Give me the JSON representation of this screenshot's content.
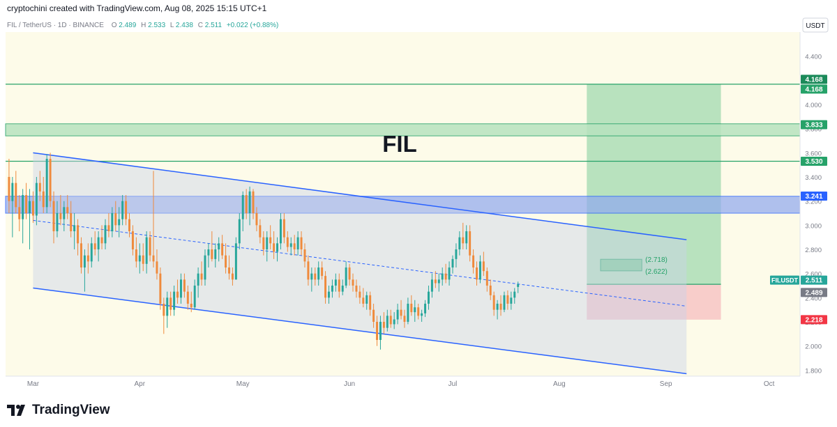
{
  "header": {
    "credit": "cryptochini created with TradingView.com, Aug 08, 2025 15:15 UTC+1"
  },
  "footer": {
    "brand": "TradingView"
  },
  "colors": {
    "background": "#fdfbe9",
    "up": "#26a69a",
    "down": "#ef8a3c",
    "channel": "#2962ff",
    "resistance": "#26a269",
    "zone_blue": "#8fa8f0",
    "target_zone": "#a6dcb3",
    "stop_zone": "#f7c4c4"
  },
  "chart_data": {
    "type": "candlestick",
    "symbol_line": {
      "symbol": "FIL / TetherUS · 1D · BINANCE",
      "o_label": "O",
      "o": "2.489",
      "h_label": "H",
      "h": "2.533",
      "l_label": "L",
      "l": "2.438",
      "c_label": "C",
      "c": "2.511",
      "change": "+0.022 (+0.88%)"
    },
    "title": "FIL",
    "currency": "USDT",
    "y_ticks": [
      "4.400",
      "4.200",
      "4.000",
      "3.800",
      "3.600",
      "3.400",
      "3.200",
      "3.000",
      "2.800",
      "2.600",
      "2.400",
      "2.200",
      "2.000",
      "1.800"
    ],
    "y_range": [
      1.75,
      4.6
    ],
    "x_labels": [
      {
        "label": "Mar",
        "day": 0
      },
      {
        "label": "Apr",
        "day": 31
      },
      {
        "label": "May",
        "day": 61
      },
      {
        "label": "Jun",
        "day": 92
      },
      {
        "label": "Jul",
        "day": 122
      },
      {
        "label": "Aug",
        "day": 153
      },
      {
        "label": "Sep",
        "day": 184
      },
      {
        "label": "Oct",
        "day": 214
      }
    ],
    "x_range": [
      -8,
      223
    ],
    "candles": [
      {
        "o": 3.4,
        "h": 3.55,
        "l": 3.1,
        "c": 3.2
      },
      {
        "o": 3.2,
        "h": 3.4,
        "l": 2.9,
        "c": 3.35
      },
      {
        "o": 3.35,
        "h": 3.45,
        "l": 3.1,
        "c": 3.15
      },
      {
        "o": 3.15,
        "h": 3.25,
        "l": 2.95,
        "c": 3.05
      },
      {
        "o": 3.05,
        "h": 3.3,
        "l": 2.85,
        "c": 3.25
      },
      {
        "o": 3.25,
        "h": 3.35,
        "l": 3.05,
        "c": 3.1
      },
      {
        "o": 3.1,
        "h": 3.3,
        "l": 2.8,
        "c": 3.2
      },
      {
        "o": 3.2,
        "h": 3.28,
        "l": 3.02,
        "c": 3.08
      },
      {
        "o": 3.08,
        "h": 3.4,
        "l": 3.0,
        "c": 3.35
      },
      {
        "o": 3.35,
        "h": 3.45,
        "l": 3.2,
        "c": 3.28
      },
      {
        "o": 3.28,
        "h": 3.4,
        "l": 3.1,
        "c": 3.15
      },
      {
        "o": 3.15,
        "h": 3.59,
        "l": 3.1,
        "c": 3.55
      },
      {
        "o": 3.55,
        "h": 3.6,
        "l": 3.15,
        "c": 3.2
      },
      {
        "o": 3.2,
        "h": 3.28,
        "l": 2.85,
        "c": 2.95
      },
      {
        "o": 2.95,
        "h": 3.2,
        "l": 2.9,
        "c": 3.1
      },
      {
        "o": 3.1,
        "h": 3.25,
        "l": 3.0,
        "c": 3.05
      },
      {
        "o": 3.05,
        "h": 3.2,
        "l": 2.95,
        "c": 3.15
      },
      {
        "o": 3.15,
        "h": 3.25,
        "l": 3.05,
        "c": 3.1
      },
      {
        "o": 3.1,
        "h": 3.2,
        "l": 2.9,
        "c": 2.95
      },
      {
        "o": 2.95,
        "h": 3.1,
        "l": 2.8,
        "c": 3.0
      },
      {
        "o": 3.0,
        "h": 3.05,
        "l": 2.75,
        "c": 2.85
      },
      {
        "o": 2.85,
        "h": 2.9,
        "l": 2.6,
        "c": 2.65
      },
      {
        "o": 2.65,
        "h": 2.8,
        "l": 2.45,
        "c": 2.75
      },
      {
        "o": 2.75,
        "h": 2.85,
        "l": 2.6,
        "c": 2.7
      },
      {
        "o": 2.7,
        "h": 2.9,
        "l": 2.65,
        "c": 2.85
      },
      {
        "o": 2.85,
        "h": 2.95,
        "l": 2.75,
        "c": 2.8
      },
      {
        "o": 2.8,
        "h": 2.95,
        "l": 2.7,
        "c": 2.9
      },
      {
        "o": 2.9,
        "h": 3.0,
        "l": 2.8,
        "c": 2.85
      },
      {
        "o": 2.85,
        "h": 3.05,
        "l": 2.8,
        "c": 3.0
      },
      {
        "o": 3.0,
        "h": 3.1,
        "l": 2.9,
        "c": 2.95
      },
      {
        "o": 2.95,
        "h": 3.15,
        "l": 2.9,
        "c": 3.1
      },
      {
        "o": 3.1,
        "h": 3.2,
        "l": 2.95,
        "c": 3.0
      },
      {
        "o": 3.0,
        "h": 3.15,
        "l": 2.9,
        "c": 3.05
      },
      {
        "o": 3.05,
        "h": 3.25,
        "l": 3.0,
        "c": 3.2
      },
      {
        "o": 3.2,
        "h": 3.25,
        "l": 3.0,
        "c": 3.05
      },
      {
        "o": 3.05,
        "h": 3.1,
        "l": 2.9,
        "c": 2.95
      },
      {
        "o": 2.95,
        "h": 3.0,
        "l": 2.75,
        "c": 2.8
      },
      {
        "o": 2.8,
        "h": 2.9,
        "l": 2.65,
        "c": 2.7
      },
      {
        "o": 2.7,
        "h": 2.85,
        "l": 2.6,
        "c": 2.75
      },
      {
        "o": 2.75,
        "h": 2.85,
        "l": 2.62,
        "c": 2.68
      },
      {
        "o": 2.68,
        "h": 2.95,
        "l": 2.6,
        "c": 2.9
      },
      {
        "o": 2.9,
        "h": 2.95,
        "l": 2.7,
        "c": 2.75
      },
      {
        "o": 2.75,
        "h": 3.45,
        "l": 2.65,
        "c": 2.7
      },
      {
        "o": 2.7,
        "h": 2.8,
        "l": 2.55,
        "c": 2.6
      },
      {
        "o": 2.6,
        "h": 2.65,
        "l": 2.3,
        "c": 2.35
      },
      {
        "o": 2.35,
        "h": 2.4,
        "l": 2.1,
        "c": 2.25
      },
      {
        "o": 2.25,
        "h": 2.45,
        "l": 2.15,
        "c": 2.4
      },
      {
        "o": 2.4,
        "h": 2.45,
        "l": 2.25,
        "c": 2.3
      },
      {
        "o": 2.3,
        "h": 2.5,
        "l": 2.25,
        "c": 2.45
      },
      {
        "o": 2.45,
        "h": 2.55,
        "l": 2.35,
        "c": 2.4
      },
      {
        "o": 2.4,
        "h": 2.6,
        "l": 2.35,
        "c": 2.55
      },
      {
        "o": 2.55,
        "h": 2.6,
        "l": 2.4,
        "c": 2.45
      },
      {
        "o": 2.45,
        "h": 2.5,
        "l": 2.3,
        "c": 2.35
      },
      {
        "o": 2.35,
        "h": 2.45,
        "l": 2.28,
        "c": 2.32
      },
      {
        "o": 2.32,
        "h": 2.55,
        "l": 2.3,
        "c": 2.5
      },
      {
        "o": 2.5,
        "h": 2.65,
        "l": 2.4,
        "c": 2.6
      },
      {
        "o": 2.6,
        "h": 2.7,
        "l": 2.5,
        "c": 2.55
      },
      {
        "o": 2.55,
        "h": 2.8,
        "l": 2.5,
        "c": 2.75
      },
      {
        "o": 2.75,
        "h": 2.85,
        "l": 2.65,
        "c": 2.8
      },
      {
        "o": 2.8,
        "h": 2.95,
        "l": 2.7,
        "c": 2.72
      },
      {
        "o": 2.72,
        "h": 2.85,
        "l": 2.65,
        "c": 2.8
      },
      {
        "o": 2.8,
        "h": 2.9,
        "l": 2.7,
        "c": 2.85
      },
      {
        "o": 2.85,
        "h": 2.92,
        "l": 2.72,
        "c": 2.75
      },
      {
        "o": 2.75,
        "h": 2.85,
        "l": 2.6,
        "c": 2.65
      },
      {
        "o": 2.65,
        "h": 2.75,
        "l": 2.55,
        "c": 2.6
      },
      {
        "o": 2.6,
        "h": 2.65,
        "l": 2.5,
        "c": 2.55
      },
      {
        "o": 2.55,
        "h": 2.9,
        "l": 2.55,
        "c": 2.85
      },
      {
        "o": 2.85,
        "h": 3.1,
        "l": 2.8,
        "c": 3.05
      },
      {
        "o": 3.05,
        "h": 3.28,
        "l": 2.95,
        "c": 3.25
      },
      {
        "o": 3.25,
        "h": 3.3,
        "l": 3.05,
        "c": 3.1
      },
      {
        "o": 3.1,
        "h": 3.32,
        "l": 3.0,
        "c": 3.28
      },
      {
        "o": 3.28,
        "h": 3.3,
        "l": 3.05,
        "c": 3.1
      },
      {
        "o": 3.1,
        "h": 3.15,
        "l": 2.95,
        "c": 3.0
      },
      {
        "o": 3.0,
        "h": 3.05,
        "l": 2.85,
        "c": 2.9
      },
      {
        "o": 2.9,
        "h": 2.95,
        "l": 2.75,
        "c": 2.8
      },
      {
        "o": 2.8,
        "h": 2.95,
        "l": 2.7,
        "c": 2.9
      },
      {
        "o": 2.9,
        "h": 3.0,
        "l": 2.8,
        "c": 2.85
      },
      {
        "o": 2.85,
        "h": 2.95,
        "l": 2.72,
        "c": 2.78
      },
      {
        "o": 2.78,
        "h": 2.9,
        "l": 2.7,
        "c": 2.85
      },
      {
        "o": 2.85,
        "h": 3.1,
        "l": 2.8,
        "c": 3.05
      },
      {
        "o": 3.05,
        "h": 3.1,
        "l": 2.85,
        "c": 2.9
      },
      {
        "o": 2.9,
        "h": 2.95,
        "l": 2.78,
        "c": 2.82
      },
      {
        "o": 2.82,
        "h": 2.9,
        "l": 2.75,
        "c": 2.85
      },
      {
        "o": 2.85,
        "h": 2.92,
        "l": 2.75,
        "c": 2.8
      },
      {
        "o": 2.8,
        "h": 2.95,
        "l": 2.75,
        "c": 2.9
      },
      {
        "o": 2.9,
        "h": 2.95,
        "l": 2.75,
        "c": 2.8
      },
      {
        "o": 2.8,
        "h": 2.85,
        "l": 2.65,
        "c": 2.7
      },
      {
        "o": 2.7,
        "h": 2.75,
        "l": 2.5,
        "c": 2.55
      },
      {
        "o": 2.55,
        "h": 2.65,
        "l": 2.45,
        "c": 2.6
      },
      {
        "o": 2.6,
        "h": 2.65,
        "l": 2.5,
        "c": 2.55
      },
      {
        "o": 2.55,
        "h": 2.7,
        "l": 2.5,
        "c": 2.65
      },
      {
        "o": 2.65,
        "h": 2.7,
        "l": 2.55,
        "c": 2.58
      },
      {
        "o": 2.58,
        "h": 2.62,
        "l": 2.35,
        "c": 2.4
      },
      {
        "o": 2.4,
        "h": 2.5,
        "l": 2.35,
        "c": 2.45
      },
      {
        "o": 2.45,
        "h": 2.55,
        "l": 2.4,
        "c": 2.5
      },
      {
        "o": 2.5,
        "h": 2.6,
        "l": 2.45,
        "c": 2.55
      },
      {
        "o": 2.55,
        "h": 2.6,
        "l": 2.4,
        "c": 2.45
      },
      {
        "o": 2.45,
        "h": 2.55,
        "l": 2.42,
        "c": 2.5
      },
      {
        "o": 2.5,
        "h": 2.7,
        "l": 2.48,
        "c": 2.65
      },
      {
        "o": 2.65,
        "h": 2.68,
        "l": 2.5,
        "c": 2.55
      },
      {
        "o": 2.55,
        "h": 2.6,
        "l": 2.45,
        "c": 2.5
      },
      {
        "o": 2.5,
        "h": 2.55,
        "l": 2.4,
        "c": 2.45
      },
      {
        "o": 2.45,
        "h": 2.5,
        "l": 2.35,
        "c": 2.4
      },
      {
        "o": 2.4,
        "h": 2.48,
        "l": 2.32,
        "c": 2.35
      },
      {
        "o": 2.35,
        "h": 2.45,
        "l": 2.3,
        "c": 2.42
      },
      {
        "o": 2.42,
        "h": 2.45,
        "l": 2.25,
        "c": 2.3
      },
      {
        "o": 2.3,
        "h": 2.35,
        "l": 2.15,
        "c": 2.2
      },
      {
        "o": 2.2,
        "h": 2.25,
        "l": 2.0,
        "c": 2.05
      },
      {
        "o": 2.05,
        "h": 2.25,
        "l": 1.97,
        "c": 2.2
      },
      {
        "o": 2.2,
        "h": 2.28,
        "l": 2.1,
        "c": 2.15
      },
      {
        "o": 2.15,
        "h": 2.3,
        "l": 2.12,
        "c": 2.25
      },
      {
        "o": 2.25,
        "h": 2.3,
        "l": 2.15,
        "c": 2.18
      },
      {
        "o": 2.18,
        "h": 2.28,
        "l": 2.14,
        "c": 2.22
      },
      {
        "o": 2.22,
        "h": 2.35,
        "l": 2.18,
        "c": 2.3
      },
      {
        "o": 2.3,
        "h": 2.38,
        "l": 2.22,
        "c": 2.25
      },
      {
        "o": 2.25,
        "h": 2.3,
        "l": 2.15,
        "c": 2.2
      },
      {
        "o": 2.2,
        "h": 2.4,
        "l": 2.18,
        "c": 2.35
      },
      {
        "o": 2.35,
        "h": 2.42,
        "l": 2.25,
        "c": 2.28
      },
      {
        "o": 2.28,
        "h": 2.38,
        "l": 2.2,
        "c": 2.32
      },
      {
        "o": 2.32,
        "h": 2.35,
        "l": 2.22,
        "c": 2.25
      },
      {
        "o": 2.25,
        "h": 2.3,
        "l": 2.2,
        "c": 2.27
      },
      {
        "o": 2.27,
        "h": 2.38,
        "l": 2.24,
        "c": 2.35
      },
      {
        "o": 2.35,
        "h": 2.5,
        "l": 2.3,
        "c": 2.45
      },
      {
        "o": 2.45,
        "h": 2.6,
        "l": 2.4,
        "c": 2.55
      },
      {
        "o": 2.55,
        "h": 2.62,
        "l": 2.48,
        "c": 2.52
      },
      {
        "o": 2.52,
        "h": 2.6,
        "l": 2.45,
        "c": 2.55
      },
      {
        "o": 2.55,
        "h": 2.65,
        "l": 2.5,
        "c": 2.6
      },
      {
        "o": 2.6,
        "h": 2.68,
        "l": 2.52,
        "c": 2.55
      },
      {
        "o": 2.55,
        "h": 2.7,
        "l": 2.5,
        "c": 2.65
      },
      {
        "o": 2.65,
        "h": 2.75,
        "l": 2.6,
        "c": 2.72
      },
      {
        "o": 2.72,
        "h": 2.85,
        "l": 2.65,
        "c": 2.8
      },
      {
        "o": 2.8,
        "h": 2.95,
        "l": 2.75,
        "c": 2.9
      },
      {
        "o": 2.9,
        "h": 3.02,
        "l": 2.8,
        "c": 2.85
      },
      {
        "o": 2.85,
        "h": 3.0,
        "l": 2.8,
        "c": 2.95
      },
      {
        "o": 2.95,
        "h": 3.0,
        "l": 2.7,
        "c": 2.75
      },
      {
        "o": 2.75,
        "h": 2.8,
        "l": 2.6,
        "c": 2.65
      },
      {
        "o": 2.65,
        "h": 2.7,
        "l": 2.5,
        "c": 2.55
      },
      {
        "o": 2.55,
        "h": 2.75,
        "l": 2.52,
        "c": 2.7
      },
      {
        "o": 2.7,
        "h": 2.78,
        "l": 2.58,
        "c": 2.62
      },
      {
        "o": 2.62,
        "h": 2.65,
        "l": 2.45,
        "c": 2.5
      },
      {
        "o": 2.5,
        "h": 2.55,
        "l": 2.38,
        "c": 2.42
      },
      {
        "o": 2.42,
        "h": 2.45,
        "l": 2.25,
        "c": 2.3
      },
      {
        "o": 2.3,
        "h": 2.38,
        "l": 2.22,
        "c": 2.35
      },
      {
        "o": 2.35,
        "h": 2.42,
        "l": 2.25,
        "c": 2.3
      },
      {
        "o": 2.3,
        "h": 2.45,
        "l": 2.28,
        "c": 2.42
      },
      {
        "o": 2.42,
        "h": 2.46,
        "l": 2.3,
        "c": 2.35
      },
      {
        "o": 2.35,
        "h": 2.45,
        "l": 2.3,
        "c": 2.4
      },
      {
        "o": 2.4,
        "h": 2.48,
        "l": 2.35,
        "c": 2.45
      },
      {
        "o": 2.489,
        "h": 2.533,
        "l": 2.438,
        "c": 2.511
      }
    ],
    "first_candle_day": -7,
    "channel": {
      "upper": {
        "d1": 0,
        "v1": 3.6,
        "d2": 190,
        "v2": 2.88
      },
      "lower": {
        "d1": 0,
        "v1": 2.48,
        "d2": 190,
        "v2": 1.77
      },
      "mid": {
        "d1": 0,
        "v1": 3.04,
        "d2": 190,
        "v2": 2.33
      },
      "end_day": 190
    },
    "resistance_lines": [
      4.168,
      3.53
    ],
    "resistance_zone": [
      3.74,
      3.84
    ],
    "blue_zone": [
      3.1,
      3.24
    ],
    "position": {
      "start_day": 161,
      "end_day": 200,
      "entry": 2.511,
      "target": 4.168,
      "stop": 2.218
    },
    "small_target_box": {
      "start_day": 165,
      "end_day": 177,
      "low": 2.622,
      "high": 2.718
    },
    "annotations": [
      {
        "text": "(2.718)",
        "value": 2.718
      },
      {
        "text": "(2.622)",
        "value": 2.622
      }
    ],
    "price_labels": [
      {
        "text": "4.168",
        "value": 4.168,
        "color": "#1b8a5a",
        "offset": -7
      },
      {
        "text": "4.168",
        "value": 4.168,
        "color": "#26a269",
        "offset": 7
      },
      {
        "text": "3.833",
        "value": 3.833,
        "color": "#26a269",
        "offset": 0
      },
      {
        "text": "3.530",
        "value": 3.53,
        "color": "#26a269",
        "offset": 0
      },
      {
        "text": "3.241",
        "value": 3.241,
        "color": "#2962ff",
        "offset": 0
      },
      {
        "text": "2.511",
        "value": 2.511,
        "color": "#26a69a",
        "offset": -6
      },
      {
        "text": "2.489",
        "value": 2.489,
        "color": "#787b86",
        "offset": 8
      },
      {
        "text": "2.218",
        "value": 2.218,
        "color": "#f23645",
        "offset": 0
      }
    ],
    "symbol_tag": "FILUSDT"
  }
}
